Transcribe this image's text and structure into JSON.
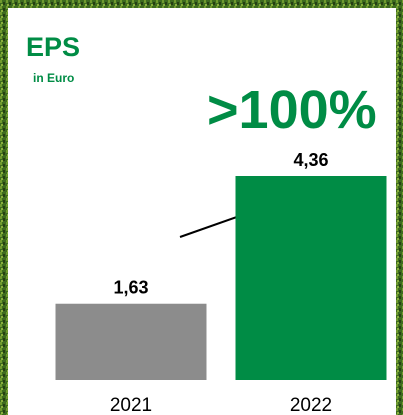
{
  "chart_data": {
    "type": "bar",
    "title": "EPS",
    "subtitle": "in Euro",
    "annotation": ">100%",
    "categories": [
      "2021",
      "2022"
    ],
    "values": [
      1.63,
      4.36
    ],
    "value_labels": [
      "1,63",
      "4,36"
    ],
    "colors": [
      "#8c8c8c",
      "#008c45"
    ]
  }
}
